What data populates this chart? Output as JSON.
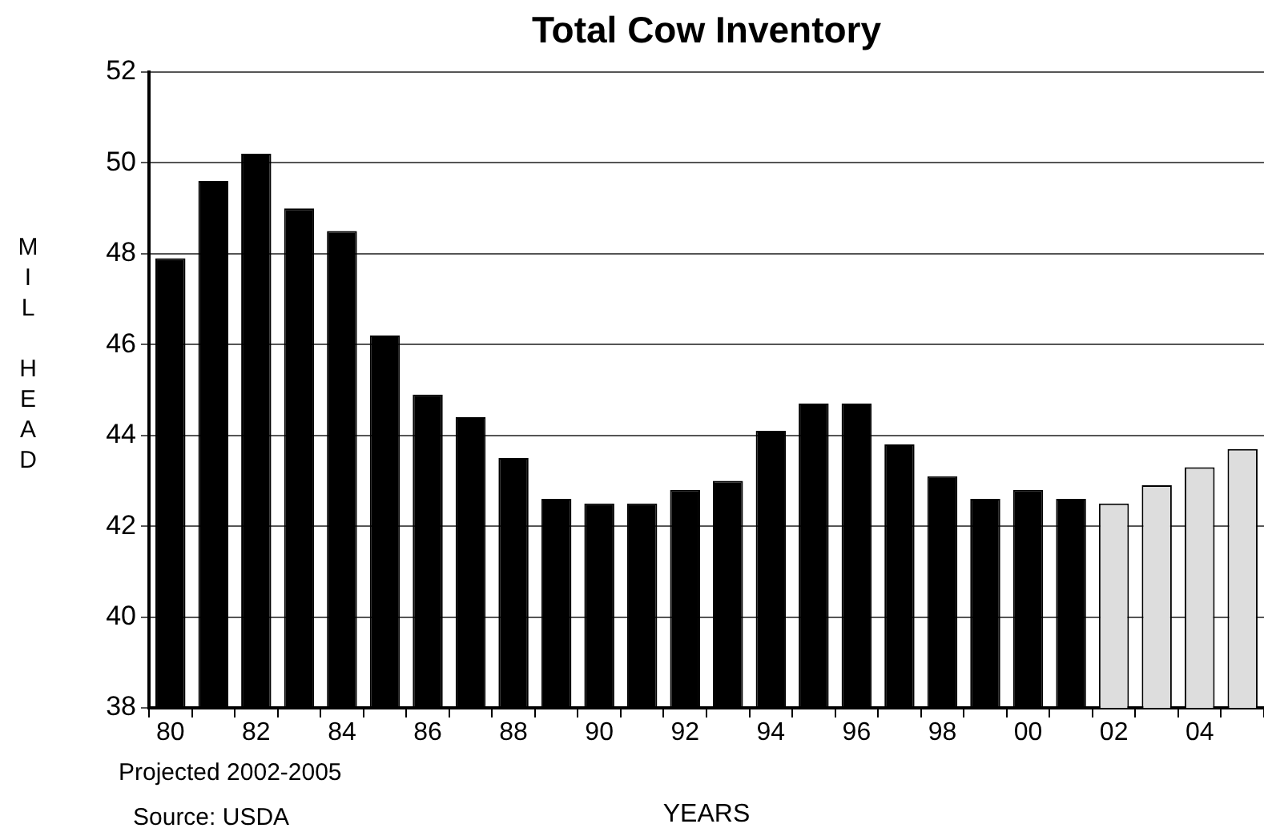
{
  "chart_data": {
    "type": "bar",
    "title": "Total Cow Inventory",
    "xlabel": "YEARS",
    "ylabel": "MIL HEAD",
    "categories": [
      "80",
      null,
      "82",
      null,
      "84",
      null,
      "86",
      null,
      "88",
      null,
      "90",
      null,
      "92",
      null,
      "94",
      null,
      "96",
      null,
      "98",
      null,
      "00",
      null,
      "02",
      null,
      "04",
      null
    ],
    "values": [
      47.9,
      49.6,
      50.2,
      49.0,
      48.5,
      46.2,
      44.9,
      44.4,
      43.5,
      42.6,
      42.5,
      42.5,
      42.8,
      43.0,
      44.1,
      44.7,
      44.7,
      43.8,
      43.1,
      42.6,
      42.8,
      42.6,
      42.5,
      42.9,
      43.3,
      43.7
    ],
    "colors": [
      "#000000",
      "#000000",
      "#000000",
      "#000000",
      "#000000",
      "#000000",
      "#000000",
      "#000000",
      "#000000",
      "#000000",
      "#000000",
      "#000000",
      "#000000",
      "#000000",
      "#000000",
      "#000000",
      "#000000",
      "#000000",
      "#000000",
      "#000000",
      "#000000",
      "#000000",
      "#dddddd",
      "#dddddd",
      "#dddddd",
      "#dddddd"
    ],
    "ylim": [
      38,
      52
    ],
    "yticks": [
      38,
      40,
      42,
      44,
      46,
      48,
      50,
      52
    ],
    "grid": "y",
    "legend": false,
    "annotations": [
      "Projected 2002-2005",
      "Source: USDA"
    ]
  }
}
